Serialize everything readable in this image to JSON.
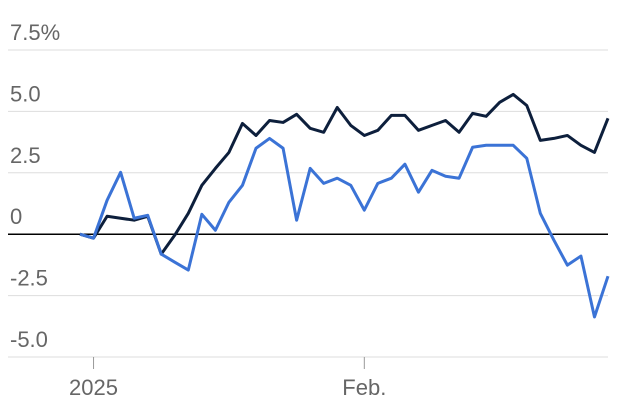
{
  "chart_data": {
    "type": "line",
    "categories": [
      null,
      "2025",
      null,
      null,
      null,
      null,
      null,
      null,
      null,
      null,
      null,
      null,
      null,
      null,
      null,
      null,
      null,
      null,
      null,
      null,
      null,
      "Feb.",
      null,
      null,
      null,
      null,
      null,
      null,
      null,
      null,
      null,
      null,
      null,
      null,
      null,
      null,
      null,
      null,
      null,
      null
    ],
    "series": [
      {
        "color": "#0d1f3c",
        "values": [
          0,
          -0.16,
          0.73,
          0.65,
          0.57,
          0.73,
          -0.81,
          -0.04,
          0.85,
          1.99,
          2.68,
          3.33,
          4.51,
          4.02,
          4.63,
          4.55,
          4.88,
          4.31,
          4.15,
          5.16,
          4.43,
          4.02,
          4.23,
          4.84,
          4.84,
          4.23,
          4.43,
          4.63,
          4.15,
          4.92,
          4.8,
          5.37,
          5.69,
          5.24,
          3.82,
          3.9,
          4.02,
          3.62,
          3.33,
          4.72
        ]
      },
      {
        "color": "#3b73d6",
        "values": [
          0,
          -0.16,
          1.38,
          2.52,
          0.65,
          0.77,
          -0.81,
          -1.14,
          -1.46,
          0.81,
          0.16,
          1.3,
          1.99,
          3.5,
          3.9,
          3.5,
          0.57,
          2.68,
          2.07,
          2.28,
          1.99,
          0.98,
          2.07,
          2.28,
          2.85,
          1.71,
          2.6,
          2.36,
          2.28,
          3.54,
          3.62,
          3.62,
          3.62,
          3.09,
          0.85,
          -0.24,
          -1.26,
          -0.89,
          -3.37,
          -1.71
        ]
      }
    ],
    "ylim": [
      -5,
      7.5
    ],
    "yticks": [
      {
        "value": 7.5,
        "label": "7.5%"
      },
      {
        "value": 5,
        "label": "5.0"
      },
      2.5,
      0,
      -2.5,
      {
        "value": -5,
        "label": "-5.0"
      }
    ],
    "grid": true
  }
}
